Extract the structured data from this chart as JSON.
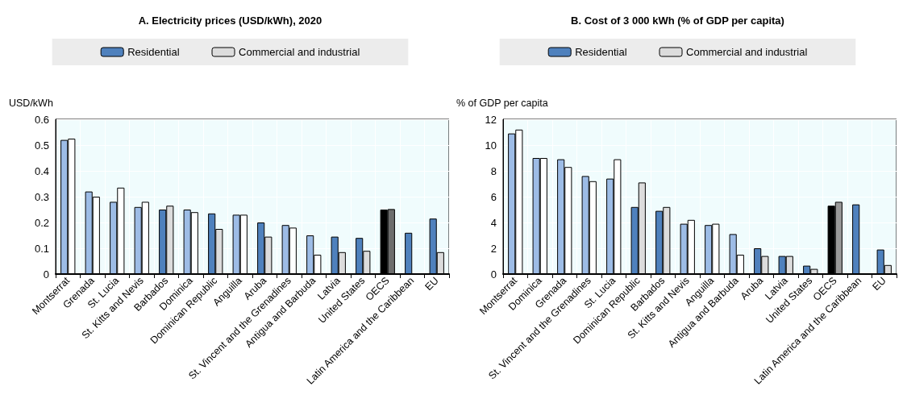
{
  "chart_data": [
    {
      "type": "bar",
      "title": "A. Electricity prices (USD/kWh), 2020",
      "ylabel": "USD/kWh",
      "legend": "top",
      "grid": true,
      "categories": [
        "Montserrat",
        "Grenada",
        "St. Lucia",
        "St. Kitts and Nevis",
        "Barbados",
        "Dominica",
        "Dominican Republic",
        "Anguilla",
        "Aruba",
        "St. Vincent and the Grenadines",
        "Antigua and Barbuda",
        "Latvia",
        "United States",
        "OECS",
        "Latin America and the Caribbean",
        "EU"
      ],
      "ylim": [
        0,
        0.6
      ],
      "yticks": [
        0,
        0.1,
        0.2,
        0.3,
        0.4,
        0.5,
        0.6
      ],
      "series": [
        {
          "name": "Residential",
          "color": "#4f81bd",
          "colors": [
            "#9dbce6",
            "#9dbce6",
            "#9dbce6",
            "#9dbce6",
            "#4f81bd",
            "#9dbce6",
            "#4f81bd",
            "#9dbce6",
            "#4f81bd",
            "#9dbce6",
            "#9dbce6",
            "#4f81bd",
            "#4f81bd",
            "#000000",
            "#4f81bd",
            "#4f81bd"
          ],
          "values": [
            0.52,
            0.32,
            0.28,
            0.26,
            0.25,
            0.25,
            0.235,
            0.23,
            0.2,
            0.19,
            0.15,
            0.145,
            0.14,
            0.25,
            0.16,
            0.215
          ]
        },
        {
          "name": "Commercial and industrial",
          "color": "#dcdcdc",
          "colors": [
            "#ffffff",
            "#ffffff",
            "#ffffff",
            "#ffffff",
            "#dcdcdc",
            "#ffffff",
            "#dcdcdc",
            "#ffffff",
            "#dcdcdc",
            "#ffffff",
            "#ffffff",
            "#dcdcdc",
            "#dcdcdc",
            "#6d6d6d",
            "#dcdcdc",
            "#dcdcdc"
          ],
          "values": [
            0.525,
            0.3,
            0.335,
            0.28,
            0.265,
            0.24,
            0.175,
            0.23,
            0.145,
            0.18,
            0.075,
            0.085,
            0.09,
            0.252,
            null,
            0.085
          ]
        }
      ]
    },
    {
      "type": "bar",
      "title": "B. Cost of 3 000 kWh (% of GDP per capita)",
      "ylabel": "% of GDP per capita",
      "legend": "top",
      "grid": true,
      "categories": [
        "Montserrat",
        "Dominica",
        "Grenada",
        "St. Vincent and the Grenadines",
        "St. Lucia",
        "Dominican Republic",
        "Barbados",
        "St. Kitts and Nevis",
        "Anguilla",
        "Antigua and Barbuda",
        "Aruba",
        "Latvia",
        "United States",
        "OECS",
        "Latin America and the Caribbean",
        "EU"
      ],
      "ylim": [
        0,
        12
      ],
      "yticks": [
        0,
        2,
        4,
        6,
        8,
        10,
        12
      ],
      "series": [
        {
          "name": "Residential",
          "color": "#4f81bd",
          "colors": [
            "#9dbce6",
            "#9dbce6",
            "#9dbce6",
            "#9dbce6",
            "#9dbce6",
            "#4f81bd",
            "#4f81bd",
            "#9dbce6",
            "#9dbce6",
            "#9dbce6",
            "#4f81bd",
            "#4f81bd",
            "#4f81bd",
            "#000000",
            "#4f81bd",
            "#4f81bd"
          ],
          "values": [
            10.9,
            9.0,
            8.9,
            7.6,
            7.4,
            5.2,
            4.9,
            3.9,
            3.8,
            3.1,
            2.0,
            1.4,
            0.65,
            5.3,
            5.4,
            1.9
          ]
        },
        {
          "name": "Commercial and industrial",
          "color": "#dcdcdc",
          "colors": [
            "#ffffff",
            "#ffffff",
            "#ffffff",
            "#ffffff",
            "#ffffff",
            "#dcdcdc",
            "#dcdcdc",
            "#ffffff",
            "#ffffff",
            "#ffffff",
            "#dcdcdc",
            "#dcdcdc",
            "#dcdcdc",
            "#999999",
            "#dcdcdc",
            "#dcdcdc"
          ],
          "values": [
            11.2,
            9.0,
            8.3,
            7.2,
            8.9,
            7.1,
            5.2,
            4.2,
            3.9,
            1.5,
            1.4,
            1.4,
            0.4,
            5.6,
            null,
            0.7
          ]
        }
      ]
    }
  ]
}
